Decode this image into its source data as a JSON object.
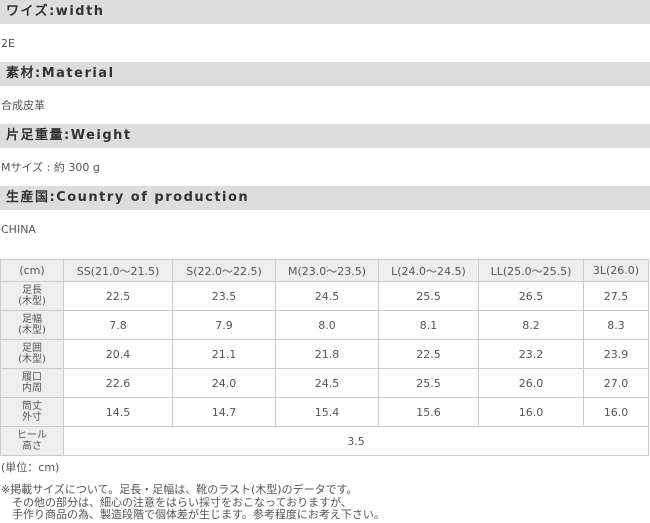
{
  "sections": [
    {
      "title": "ワイズ:width",
      "value": "2E"
    },
    {
      "title": "素材:Material",
      "value": "合成皮革"
    },
    {
      "title": "片足重量:Weight",
      "value": "Mサイズ : 約 300 g"
    },
    {
      "title": "生産国:Country of production",
      "value": "CHINA"
    }
  ],
  "table": {
    "header": [
      "(cm)",
      "SS(21.0～21.5)",
      "S(22.0～22.5)",
      "M(23.0～23.5)",
      "L(24.0～24.5)",
      "LL(25.0～25.5)",
      "3L(26.0)"
    ],
    "rows": [
      {
        "label": [
          "足長",
          "(木型)"
        ],
        "cells": [
          "22.5",
          "23.5",
          "24.5",
          "25.5",
          "26.5",
          "27.5"
        ]
      },
      {
        "label": [
          "足幅",
          "(木型)"
        ],
        "cells": [
          "7.8",
          "7.9",
          "8.0",
          "8.1",
          "8.2",
          "8.3"
        ]
      },
      {
        "label": [
          "足囲",
          "(木型)"
        ],
        "cells": [
          "20.4",
          "21.1",
          "21.8",
          "22.5",
          "23.2",
          "23.9"
        ]
      },
      {
        "label": [
          "履口",
          "内周"
        ],
        "cells": [
          "22.6",
          "24.0",
          "24.5",
          "25.5",
          "26.0",
          "27.0"
        ]
      },
      {
        "label": [
          "筒丈",
          "外寸"
        ],
        "cells": [
          "14.5",
          "14.7",
          "15.4",
          "15.6",
          "16.0",
          "16.0"
        ]
      },
      {
        "label": [
          "ヒール",
          "高さ"
        ],
        "cells": [
          "3.5"
        ]
      }
    ]
  },
  "unit": "(単位：cm)",
  "notes": [
    "※掲載サイズについて。足長・足幅は、靴のラスト(木型)のデータです。",
    "その他の部分は、細心の注意をはらい採寸をおこなっておりますが、",
    "手作り商品の為、製造段階で個体差が生じます。参考程度にお考え下さい。"
  ]
}
